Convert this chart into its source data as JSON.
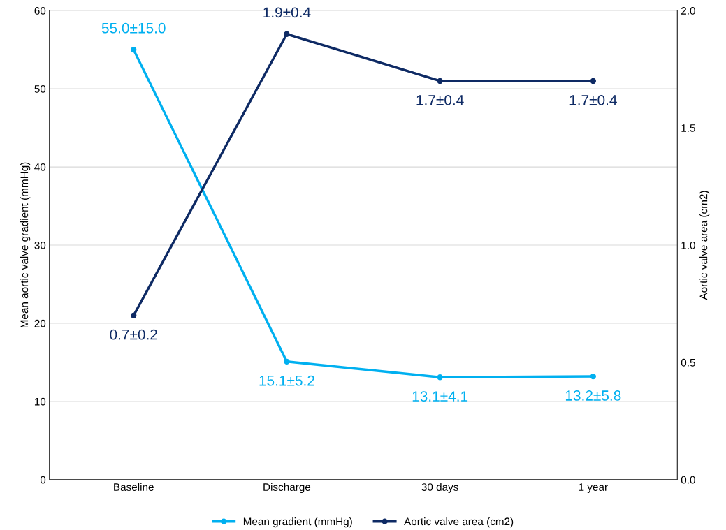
{
  "chart_data": {
    "type": "line",
    "categories": [
      "Baseline",
      "Discharge",
      "30 days",
      "1 year"
    ],
    "ylabel": "Mean aortic valve gradient (mmHg)",
    "y2label": "Aortic valve area (cm2)",
    "ylim": [
      0,
      60
    ],
    "yticks": [
      0,
      10,
      20,
      30,
      40,
      50,
      60
    ],
    "y2lim": [
      0,
      2
    ],
    "y2ticks": [
      {
        "value": 0,
        "label": "0.0"
      },
      {
        "value": 0.5,
        "label": "0.5"
      },
      {
        "value": 1,
        "label": "1.0"
      },
      {
        "value": 1.5,
        "label": "1.5"
      },
      {
        "value": 2,
        "label": "2.0"
      }
    ],
    "grid": "y",
    "legend": "bottom",
    "marker": "circle",
    "line_style": "solid",
    "series": [
      {
        "name": "Mean gradient (mmHg)",
        "color": "#00b0f0",
        "values": [
          55.0,
          15.1,
          13.1,
          13.2
        ],
        "value_labels": [
          "55.0±15.0",
          "15.1±5.2",
          "13.1±4.1",
          "13.2±5.8"
        ]
      },
      {
        "name": "Aortic valve area (cm2)",
        "color": "#0e2a64",
        "axis": "y2",
        "values": [
          0.7,
          1.9,
          1.7,
          1.7
        ],
        "value_labels": [
          "0.7±0.2",
          "1.9±0.4",
          "1.7±0.4",
          "1.7±0.4"
        ]
      }
    ]
  }
}
